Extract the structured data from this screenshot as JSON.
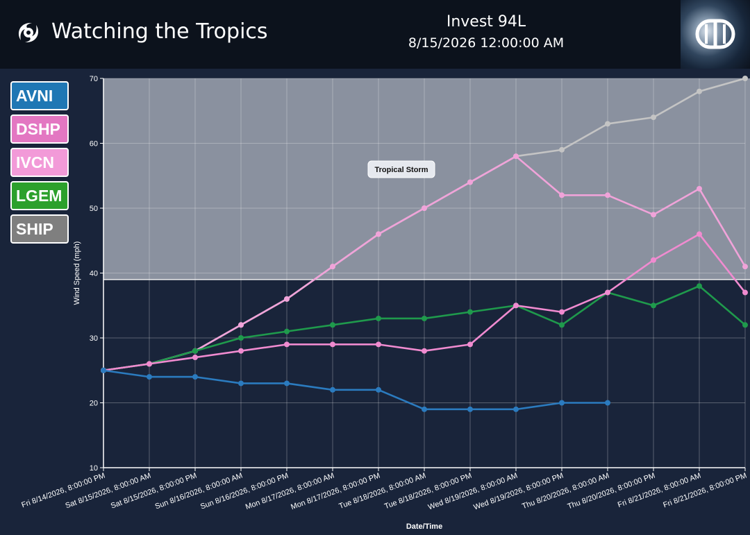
{
  "header": {
    "app_title": "Watching the Tropics",
    "storm_name": "Invest 94L",
    "storm_datetime": "8/15/2026 12:00:00 AM",
    "brand_icon": "hurricane-icon",
    "logo_text": "DD"
  },
  "legend": [
    {
      "label": "AVNI",
      "color": "#1f77b4"
    },
    {
      "label": "DSHP",
      "color": "#e377c2"
    },
    {
      "label": "IVCN",
      "color": "#f29ad8"
    },
    {
      "label": "LGEM",
      "color": "#2ca02c"
    },
    {
      "label": "SHIP",
      "color": "#7f7f7f"
    }
  ],
  "chart_data": {
    "type": "line",
    "title": "",
    "xlabel": "Date/Time",
    "ylabel": "Wind Speed (mph)",
    "ylim": [
      10,
      70
    ],
    "yticks": [
      10,
      20,
      30,
      40,
      50,
      60,
      70
    ],
    "grid": true,
    "categories": [
      "Fri 8/14/2026, 8:00:00 PM",
      "Sat 8/15/2026, 8:00:00 AM",
      "Sat 8/15/2026, 8:00:00 PM",
      "Sun 8/16/2026, 8:00:00 AM",
      "Sun 8/16/2026, 8:00:00 PM",
      "Mon 8/17/2026, 8:00:00 AM",
      "Mon 8/17/2026, 8:00:00 PM",
      "Tue 8/18/2026, 8:00:00 AM",
      "Tue 8/18/2026, 8:00:00 PM",
      "Wed 8/19/2026, 8:00:00 AM",
      "Wed 8/19/2026, 8:00:00 PM",
      "Thu 8/20/2026, 8:00:00 AM",
      "Thu 8/20/2026, 8:00:00 PM",
      "Fri 8/21/2026, 8:00:00 AM",
      "Fri 8/21/2026, 8:00:00 PM"
    ],
    "zones": [
      {
        "label": "Tropical Storm",
        "from": 39,
        "to": 70,
        "color": "#8a919f"
      }
    ],
    "series": [
      {
        "name": "SHIP",
        "color": "#c4c4c4",
        "values": [
          25,
          26,
          28,
          32,
          36,
          41,
          46,
          50,
          54,
          58,
          59,
          63,
          64,
          68,
          70
        ]
      },
      {
        "name": "DSHP",
        "color": "#f0a3d9",
        "values": [
          25,
          26,
          28,
          32,
          36,
          41,
          46,
          50,
          54,
          58,
          52,
          52,
          49,
          53,
          41
        ]
      },
      {
        "name": "LGEM",
        "color": "#1f9a4c",
        "values": [
          25,
          26,
          28,
          30,
          31,
          32,
          33,
          33,
          34,
          35,
          32,
          37,
          35,
          38,
          32
        ]
      },
      {
        "name": "IVCN",
        "color": "#f08bd0",
        "values": [
          25,
          26,
          27,
          28,
          29,
          29,
          29,
          28,
          29,
          35,
          34,
          37,
          42,
          46,
          37
        ]
      },
      {
        "name": "AVNI",
        "color": "#2b7bbf",
        "values": [
          25,
          24,
          24,
          23,
          23,
          22,
          22,
          19,
          19,
          19,
          20,
          20,
          null,
          null,
          null
        ]
      }
    ]
  }
}
